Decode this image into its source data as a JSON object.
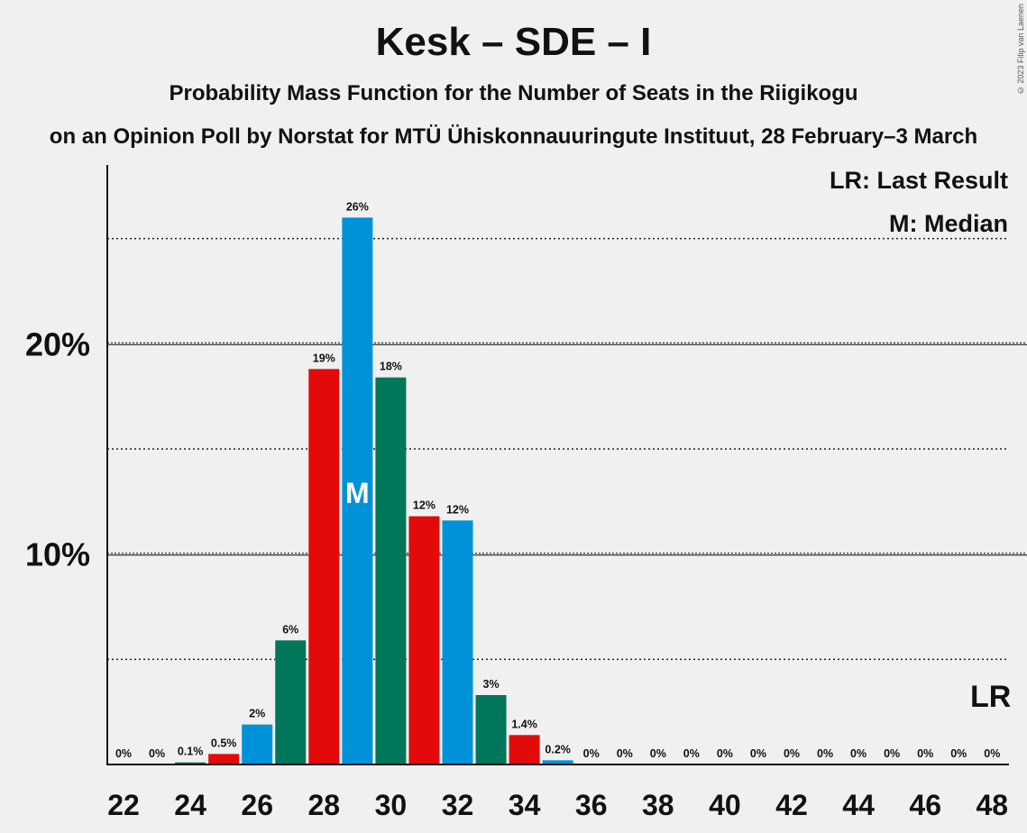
{
  "title": "Kesk – SDE – I",
  "subtitle": "Probability Mass Function for the Number of Seats in the Riigikogu",
  "subtitle2": "on an Opinion Poll by Norstat for MTÜ Ühiskonnauuringute Instituut, 28 February–3 March",
  "copyright": "© 2023 Filip van Laenen",
  "legend": {
    "last_result": "LR: Last Result",
    "median": "M: Median"
  },
  "markers": {
    "median_label": "M",
    "last_result_label": "LR"
  },
  "colors": {
    "red": "#e30a0a",
    "blue": "#0092d8",
    "green": "#00775a",
    "background": "#f0f0f0"
  },
  "chart_data": {
    "type": "bar",
    "xlabel": "",
    "ylabel": "",
    "ylim": [
      0,
      28.5
    ],
    "y_ticks": [
      {
        "value": 10,
        "label": "10%"
      },
      {
        "value": 20,
        "label": "20%"
      }
    ],
    "y_minor_gridlines": [
      5,
      15,
      25
    ],
    "x_tick_labels": [
      "22",
      "24",
      "26",
      "28",
      "30",
      "32",
      "34",
      "36",
      "38",
      "40",
      "42",
      "44",
      "46",
      "48"
    ],
    "median_seats": 29,
    "last_result_seats": 48,
    "bars": [
      {
        "seats": 22,
        "value": 0,
        "label": "0%",
        "color": "green"
      },
      {
        "seats": 23,
        "value": 0,
        "label": "0%",
        "color": "red"
      },
      {
        "seats": 24,
        "value": 0.1,
        "label": "0.1%",
        "color": "green"
      },
      {
        "seats": 25,
        "value": 0.5,
        "label": "0.5%",
        "color": "red"
      },
      {
        "seats": 26,
        "value": 1.9,
        "label": "2%",
        "color": "blue"
      },
      {
        "seats": 27,
        "value": 5.9,
        "label": "6%",
        "color": "green"
      },
      {
        "seats": 28,
        "value": 18.8,
        "label": "19%",
        "color": "red"
      },
      {
        "seats": 29,
        "value": 26.0,
        "label": "26%",
        "color": "blue"
      },
      {
        "seats": 30,
        "value": 18.4,
        "label": "18%",
        "color": "green"
      },
      {
        "seats": 31,
        "value": 11.8,
        "label": "12%",
        "color": "red"
      },
      {
        "seats": 32,
        "value": 11.6,
        "label": "12%",
        "color": "blue"
      },
      {
        "seats": 33,
        "value": 3.3,
        "label": "3%",
        "color": "green"
      },
      {
        "seats": 34,
        "value": 1.4,
        "label": "1.4%",
        "color": "red"
      },
      {
        "seats": 35,
        "value": 0.2,
        "label": "0.2%",
        "color": "blue"
      },
      {
        "seats": 36,
        "value": 0,
        "label": "0%",
        "color": "green"
      },
      {
        "seats": 37,
        "value": 0,
        "label": "0%",
        "color": "red"
      },
      {
        "seats": 38,
        "value": 0,
        "label": "0%",
        "color": "blue"
      },
      {
        "seats": 39,
        "value": 0,
        "label": "0%",
        "color": "green"
      },
      {
        "seats": 40,
        "value": 0,
        "label": "0%",
        "color": "red"
      },
      {
        "seats": 41,
        "value": 0,
        "label": "0%",
        "color": "blue"
      },
      {
        "seats": 42,
        "value": 0,
        "label": "0%",
        "color": "green"
      },
      {
        "seats": 43,
        "value": 0,
        "label": "0%",
        "color": "red"
      },
      {
        "seats": 44,
        "value": 0,
        "label": "0%",
        "color": "blue"
      },
      {
        "seats": 45,
        "value": 0,
        "label": "0%",
        "color": "green"
      },
      {
        "seats": 46,
        "value": 0,
        "label": "0%",
        "color": "red"
      },
      {
        "seats": 47,
        "value": 0,
        "label": "0%",
        "color": "blue"
      },
      {
        "seats": 48,
        "value": 0,
        "label": "0%",
        "color": "green"
      }
    ]
  }
}
